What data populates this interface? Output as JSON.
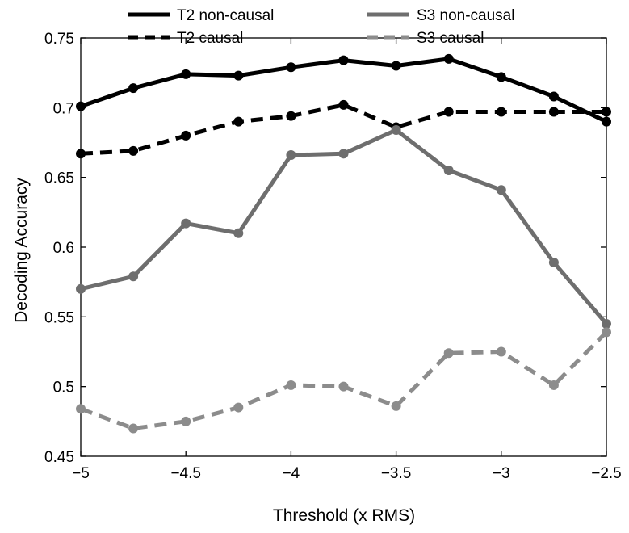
{
  "chart_data": {
    "type": "line",
    "title": "",
    "xlabel": "Threshold (x RMS)",
    "ylabel": "Decoding Accuracy",
    "xlim": [
      -5,
      -2.5
    ],
    "ylim": [
      0.45,
      0.75
    ],
    "xticks": [
      -5,
      -4.5,
      -4,
      -3.5,
      -3,
      -2.5
    ],
    "xtick_labels": [
      "−5",
      "−4.5",
      "−4",
      "−3.5",
      "−3",
      "−2.5"
    ],
    "yticks": [
      0.45,
      0.5,
      0.55,
      0.6,
      0.65,
      0.7,
      0.75
    ],
    "ytick_labels": [
      "0.45",
      "0.5",
      "0.55",
      "0.6",
      "0.65",
      "0.7",
      "0.75"
    ],
    "grid": false,
    "legend_position": "top",
    "x": [
      -5,
      -4.75,
      -4.5,
      -4.25,
      -4,
      -3.75,
      -3.5,
      -3.25,
      -3,
      -2.75,
      -2.5
    ],
    "series": [
      {
        "name": "T2 non-causal",
        "color": "#000000",
        "dash": "solid",
        "values": [
          0.701,
          0.714,
          0.724,
          0.723,
          0.729,
          0.734,
          0.73,
          0.735,
          0.722,
          0.708,
          0.69
        ]
      },
      {
        "name": "T2 causal",
        "color": "#000000",
        "dash": "dashed",
        "values": [
          0.667,
          0.669,
          0.68,
          0.69,
          0.694,
          0.702,
          0.686,
          0.697,
          0.697,
          0.697,
          0.697
        ]
      },
      {
        "name": "S3 non-causal",
        "color": "#6e6e6e",
        "dash": "solid",
        "values": [
          0.57,
          0.579,
          0.617,
          0.61,
          0.666,
          0.667,
          0.684,
          0.655,
          0.641,
          0.589,
          0.545
        ]
      },
      {
        "name": "S3 causal",
        "color": "#8c8c8c",
        "dash": "dashed",
        "values": [
          0.484,
          0.47,
          0.475,
          0.485,
          0.501,
          0.5,
          0.486,
          0.524,
          0.525,
          0.501,
          0.539
        ]
      }
    ]
  }
}
